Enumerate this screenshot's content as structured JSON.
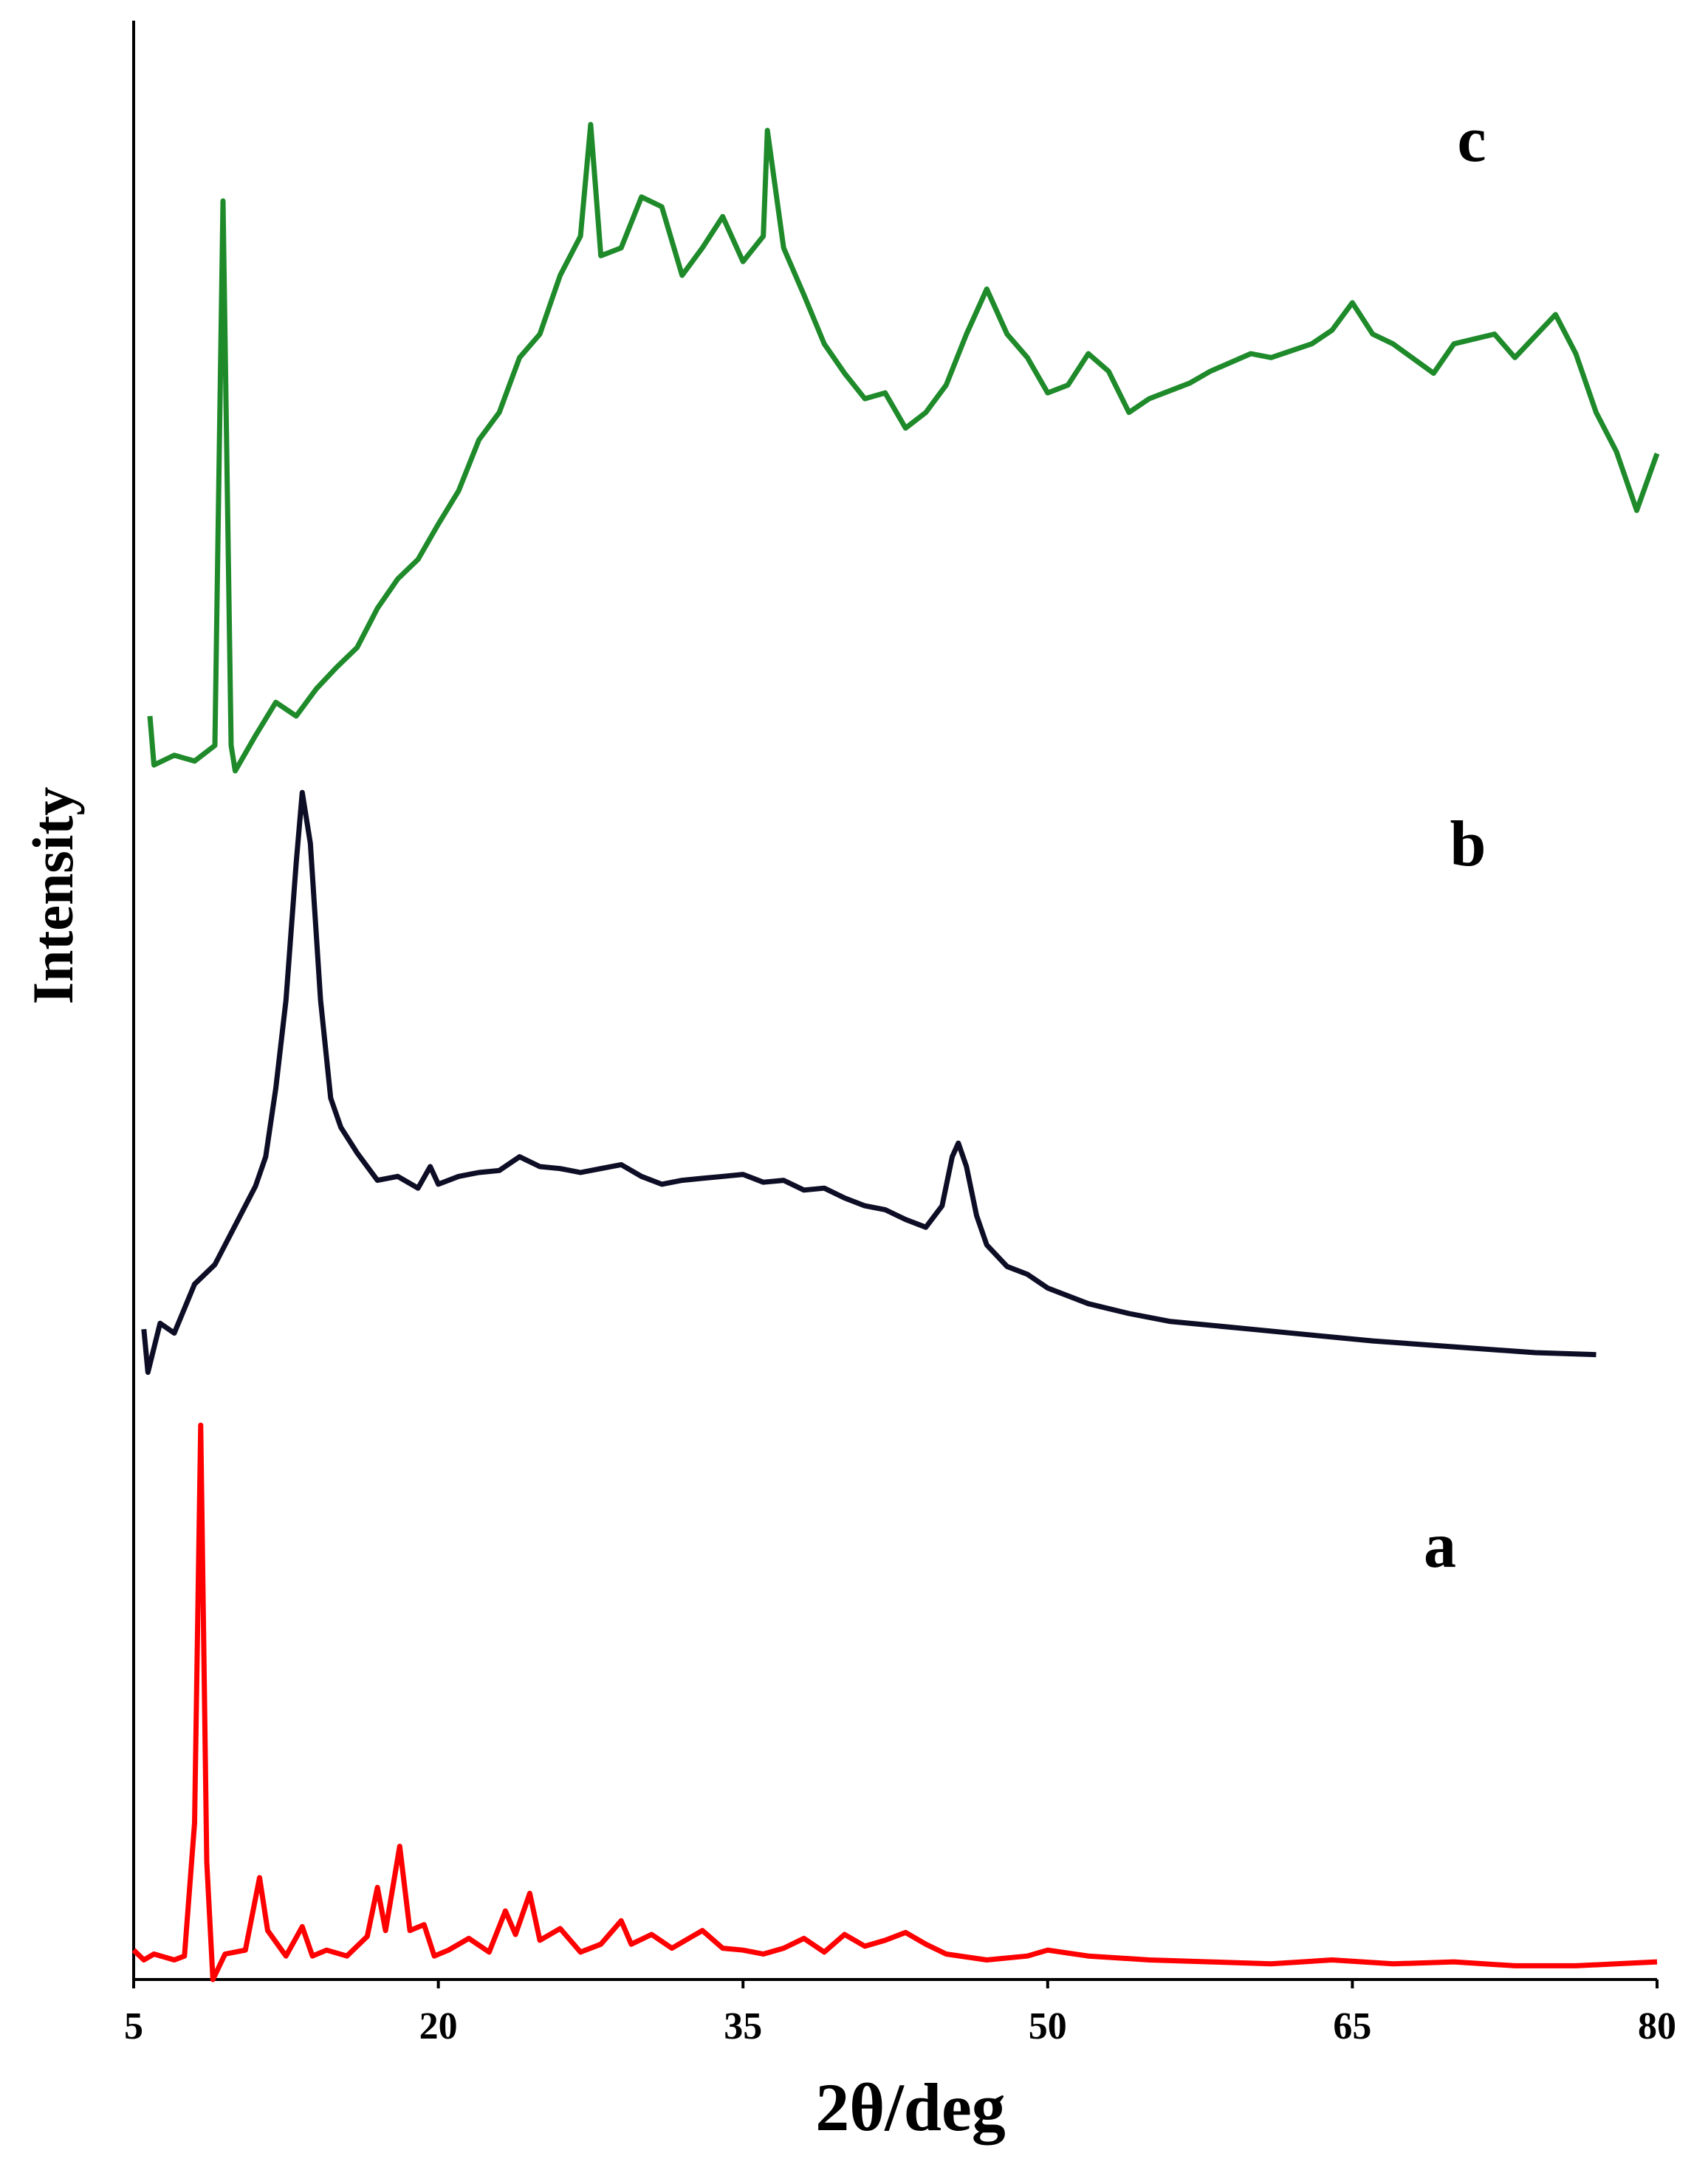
{
  "chart_data": {
    "type": "line",
    "xlabel": "2θ/deg",
    "ylabel": "Intensity",
    "xlim": [
      5,
      80
    ],
    "xticks": [
      5,
      20,
      35,
      50,
      65,
      80
    ],
    "ylim": [
      0,
      100
    ],
    "series": [
      {
        "name": "a",
        "color": "#ff0000",
        "x": [
          5,
          5.5,
          6,
          7,
          7.5,
          8,
          8.3,
          8.6,
          8.9,
          9.5,
          10.5,
          11.2,
          11.6,
          12.5,
          13.3,
          13.8,
          14.5,
          15.5,
          16.5,
          17,
          17.4,
          18.1,
          18.6,
          19.3,
          19.8,
          20.5,
          21.5,
          22.5,
          23.3,
          23.8,
          24.5,
          25,
          26,
          27,
          28,
          29,
          29.5,
          30.5,
          31.5,
          32.5,
          33,
          34,
          35,
          36,
          37,
          38,
          39,
          40,
          41,
          42,
          43,
          44,
          45,
          47,
          49,
          50,
          52,
          55,
          58,
          61,
          64,
          67,
          70,
          73,
          76,
          78,
          80
        ],
        "values": [
          1.5,
          1.0,
          1.3,
          1.0,
          1.2,
          8,
          28.3,
          6,
          0,
          1.3,
          1.5,
          5.2,
          2.5,
          1.2,
          2.7,
          1.2,
          1.5,
          1.2,
          2.2,
          4.7,
          2.5,
          6.8,
          2.5,
          2.8,
          1.2,
          1.5,
          2.1,
          1.4,
          3.5,
          2.3,
          4.4,
          2.0,
          2.6,
          1.4,
          1.8,
          3.0,
          1.8,
          2.3,
          1.6,
          2.2,
          2.5,
          1.6,
          1.5,
          1.3,
          1.6,
          2.1,
          1.4,
          2.3,
          1.7,
          2.0,
          2.4,
          1.8,
          1.3,
          1.0,
          1.2,
          1.5,
          1.2,
          1.0,
          0.9,
          0.8,
          1.0,
          0.8,
          0.9,
          0.7,
          0.7,
          0.8,
          0.9
        ]
      },
      {
        "name": "b",
        "color": "#0d0d26",
        "x": [
          5.5,
          5.7,
          6.3,
          7,
          8,
          9,
          10,
          11,
          11.5,
          12,
          12.5,
          13,
          13.3,
          13.7,
          14.2,
          14.7,
          15.2,
          16,
          17,
          18,
          19,
          19.6,
          20,
          21,
          22,
          23,
          24,
          25,
          26,
          27,
          28,
          29,
          30,
          31,
          32,
          33,
          34,
          35,
          36,
          37,
          38,
          39,
          40,
          41,
          42,
          43,
          44,
          44.8,
          45.3,
          45.6,
          46,
          46.5,
          47,
          48,
          49,
          50,
          52,
          54,
          56,
          58,
          60,
          63,
          66,
          70,
          74,
          77
        ],
        "values": [
          33.2,
          31.0,
          33.5,
          33.0,
          35.5,
          36.5,
          38.5,
          40.5,
          42.0,
          45.5,
          50,
          57,
          60.6,
          58,
          50,
          45,
          43.5,
          42.2,
          40.8,
          41.0,
          40.4,
          41.5,
          40.6,
          41.0,
          41.2,
          41.3,
          42.0,
          41.5,
          41.4,
          41.2,
          41.4,
          41.6,
          41.0,
          40.6,
          40.8,
          40.9,
          41.0,
          41.1,
          40.7,
          40.8,
          40.3,
          40.4,
          39.9,
          39.5,
          39.3,
          38.8,
          38.4,
          39.5,
          42,
          42.7,
          41.5,
          39,
          37.5,
          36.4,
          36.0,
          35.3,
          34.5,
          34.0,
          33.6,
          33.4,
          33.2,
          32.9,
          32.6,
          32.3,
          32.0,
          31.9
        ]
      },
      {
        "name": "c",
        "color": "#1e8a2a",
        "x": [
          5.8,
          6,
          7,
          8,
          9,
          9.4,
          9.8,
          10,
          11,
          12,
          13,
          14,
          15,
          16,
          17,
          18,
          19,
          20,
          21,
          22,
          23,
          24,
          25,
          26,
          27,
          27.5,
          28,
          29,
          30,
          31,
          32,
          33,
          34,
          35,
          36,
          36.2,
          37,
          38,
          39,
          40,
          41,
          42,
          43,
          44,
          45,
          46,
          47,
          48,
          49,
          50,
          51,
          52,
          53,
          54,
          55,
          57,
          58,
          60,
          61,
          63,
          64,
          65,
          66,
          67,
          69,
          70,
          72,
          73,
          75,
          76,
          77,
          78,
          79,
          80
        ],
        "values": [
          64.5,
          62,
          62.5,
          62.2,
          63,
          90.8,
          63,
          61.7,
          63.5,
          65.2,
          64.5,
          65.9,
          67,
          68,
          70,
          71.5,
          72.5,
          74.3,
          76,
          78.6,
          80,
          82.8,
          84,
          87,
          89,
          94.7,
          88,
          88.4,
          91,
          90.5,
          87,
          88.4,
          90,
          87.7,
          89,
          94.4,
          88.4,
          86,
          83.5,
          82,
          80.7,
          81,
          79.2,
          80,
          81.4,
          84,
          86.3,
          84,
          82.8,
          81,
          81.4,
          83,
          82.1,
          80,
          80.7,
          81.5,
          82.1,
          83,
          82.8,
          83.5,
          84.2,
          85.6,
          84,
          83.5,
          82,
          83.5,
          84,
          82.8,
          85.0,
          83,
          80.0,
          78,
          75.0,
          77.9
        ]
      }
    ]
  }
}
